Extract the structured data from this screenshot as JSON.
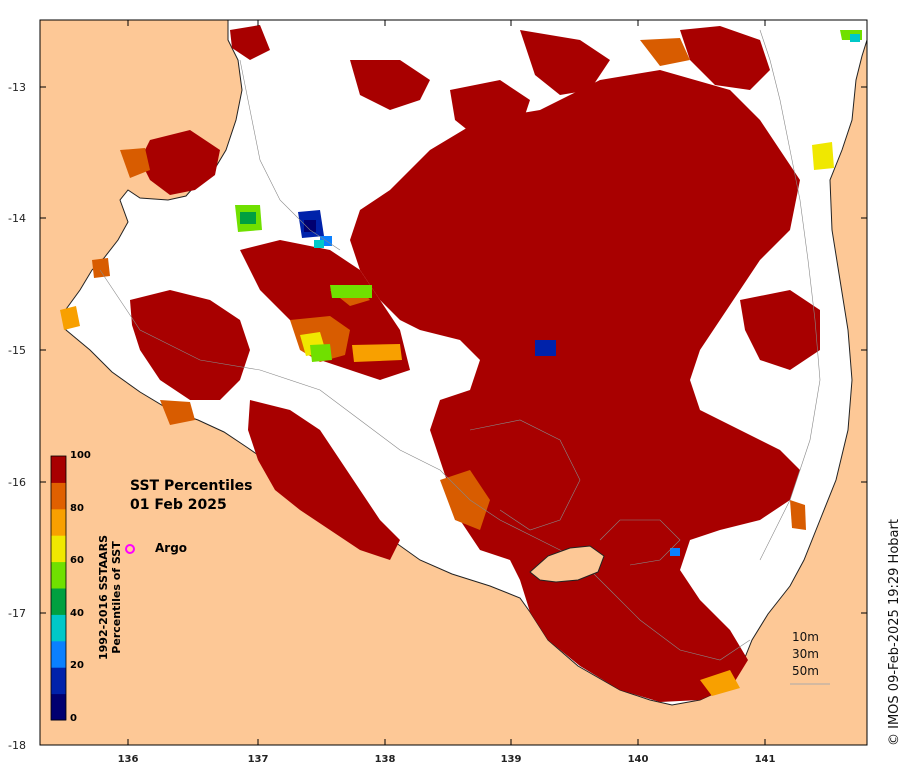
{
  "title": {
    "line1": "SST Percentiles",
    "line2": "01 Feb 2025"
  },
  "colorbar": {
    "title_line1": "1992-2016 SSTAARS",
    "title_line2": "Percentiles of SST",
    "ticks": [
      "100",
      "80",
      "60",
      "40",
      "20",
      "0"
    ],
    "colors": [
      "#000070",
      "#0022aa",
      "#0a80ff",
      "#00c8c8",
      "#00a040",
      "#70e000",
      "#f0e800",
      "#f8a000",
      "#e06000",
      "#a80000"
    ]
  },
  "legend": {
    "argo_label": "Argo",
    "argo_color": "#ff00ff"
  },
  "depth_legend": [
    "10m",
    "30m",
    "50m"
  ],
  "axes": {
    "x_ticks": [
      "136",
      "137",
      "138",
      "139",
      "140",
      "141"
    ],
    "y_ticks": [
      "-13",
      "-14",
      "-15",
      "-16",
      "-17",
      "-18"
    ]
  },
  "copyright": "© IMOS 09-Feb-2025 19:29 Hobart",
  "colors": {
    "land": "#fdc896",
    "no_data": "#ffffff",
    "warm_extreme": "#a80000",
    "warm_high": "#d85c00",
    "cold_extreme": "#000080"
  }
}
